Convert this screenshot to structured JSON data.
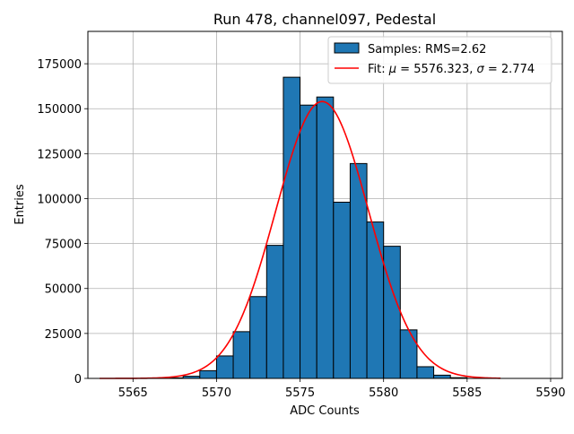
{
  "chart_data": {
    "type": "histogram",
    "title": "Run 478, channel097, Pedestal",
    "xlabel": "ADC Counts",
    "ylabel": "Entries",
    "xlim": [
      5562.3,
      5590.7
    ],
    "ylim": [
      0,
      193000
    ],
    "xticks": [
      5565,
      5570,
      5575,
      5580,
      5585,
      5590
    ],
    "yticks": [
      0,
      25000,
      50000,
      75000,
      100000,
      125000,
      150000,
      175000
    ],
    "grid": true,
    "legend_position": "top-right",
    "histogram": {
      "name": "Samples: RMS=2.62",
      "color": "#1f77b4",
      "edgecolor": "#000000",
      "bin_width": 1,
      "bin_starts": [
        5567,
        5568,
        5569,
        5570,
        5571,
        5572,
        5573,
        5574,
        5575,
        5576,
        5577,
        5578,
        5579,
        5580,
        5581,
        5582,
        5583,
        5584
      ],
      "values": [
        300,
        1200,
        4300,
        12500,
        26000,
        45500,
        74000,
        167500,
        152000,
        156500,
        98000,
        119500,
        87000,
        73500,
        27000,
        6500,
        1800,
        400
      ]
    },
    "fit": {
      "name": "Fit: μ = 5576.323, σ = 2.774",
      "legend_prefix": "Fit: ",
      "mu_symbol": "μ",
      "sigma_symbol": "σ",
      "mu_text": " = 5576.323, ",
      "sigma_text": " = 2.774",
      "color": "#ff0000",
      "mu": 5576.323,
      "sigma": 2.774,
      "amplitude": 154000,
      "x_range": [
        5563,
        5587
      ]
    }
  }
}
